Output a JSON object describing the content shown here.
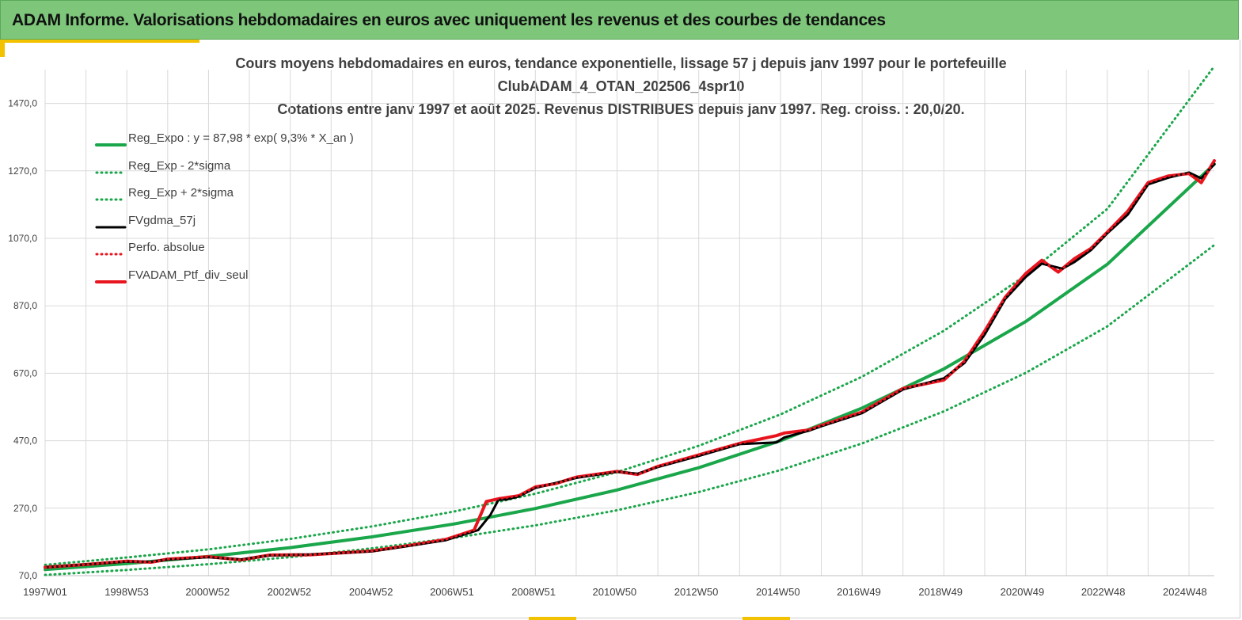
{
  "header": {
    "title": "ADAM Informe. Valorisations hebdomadaires en euros avec uniquement les revenus et des courbes de tendances"
  },
  "colors": {
    "banner": "#7dc67a",
    "accent": "#f2c200",
    "trend_green": "#1aa64a",
    "black": "#000000",
    "red": "#e8141e",
    "grid": "#d9d9d9"
  },
  "chart_data": {
    "type": "line",
    "title_lines": [
      "Cours moyens hebdomadaires  en euros, tendance exponentielle, lissage 57 j depuis janv 1997 pour le portefeuille",
      "ClubADAM_4_OTAN_202506_4spr10",
      "Cotations  entre janv 1997 et août  2025. Revenus DISTRIBUES depuis janv 1997. Reg. croiss. : 20,0/20."
    ],
    "y_ticks": [
      "70,0",
      "270,0",
      "470,0",
      "670,0",
      "870,0",
      "1070,0",
      "1270,0",
      "1470,0"
    ],
    "ylim": [
      70,
      1570
    ],
    "x_ticks": [
      "1997W01",
      "1998W53",
      "2000W52",
      "2002W52",
      "2004W52",
      "2006W51",
      "2008W51",
      "2010W50",
      "2012W50",
      "2014W50",
      "2016W49",
      "2018W49",
      "2020W49",
      "2022W48",
      "2024W48"
    ],
    "xlim": [
      1997.0,
      2025.62
    ],
    "grid": true,
    "legend_position": "top-left",
    "series": [
      {
        "name": "Reg_Expo : y = 87,98 * exp( 9,3% *  X_an )",
        "color": "#1aa64a",
        "style": "solid",
        "x": [
          1997.0,
          1999.0,
          2001.0,
          2003.0,
          2005.0,
          2007.0,
          2009.0,
          2011.0,
          2013.0,
          2015.0,
          2017.0,
          2019.0,
          2021.0,
          2023.0,
          2025.62
        ],
        "y": [
          88,
          106,
          127,
          153,
          185,
          223,
          269,
          324,
          390,
          470,
          567,
          683,
          823,
          993,
          1290
        ]
      },
      {
        "name": "Reg_Exp - 2*sigma",
        "color": "#1aa64a",
        "style": "dotted",
        "x": [
          1997.0,
          1999.0,
          2001.0,
          2003.0,
          2005.0,
          2007.0,
          2009.0,
          2011.0,
          2013.0,
          2015.0,
          2017.0,
          2019.0,
          2021.0,
          2023.0,
          2025.62
        ],
        "y": [
          72,
          87,
          104,
          125,
          151,
          182,
          219,
          264,
          318,
          383,
          462,
          557,
          671,
          809,
          1050
        ]
      },
      {
        "name": "Reg_Exp + 2*sigma",
        "color": "#1aa64a",
        "style": "dotted",
        "x": [
          1997.0,
          1999.0,
          2001.0,
          2003.0,
          2005.0,
          2007.0,
          2009.0,
          2011.0,
          2013.0,
          2015.0,
          2017.0,
          2019.0,
          2021.0,
          2023.0,
          2025.62
        ],
        "y": [
          102,
          124,
          148,
          179,
          216,
          260,
          313,
          377,
          455,
          548,
          660,
          796,
          960,
          1157,
          1580
        ]
      },
      {
        "name": "FVgdma_57j",
        "color": "#000000",
        "style": "solid",
        "x": [
          1997.0,
          1998.0,
          1999.0,
          1999.6,
          2000.0,
          2001.0,
          2001.8,
          2002.5,
          2003.5,
          2005.0,
          2006.0,
          2006.8,
          2007.6,
          2007.9,
          2008.1,
          2008.3,
          2008.6,
          2009.0,
          2009.5,
          2010.0,
          2011.0,
          2011.5,
          2012.0,
          2013.0,
          2014.0,
          2014.9,
          2015.1,
          2015.7,
          2016.0,
          2017.0,
          2018.0,
          2019.0,
          2019.5,
          2020.0,
          2020.5,
          2021.0,
          2021.4,
          2021.9,
          2022.2,
          2022.6,
          2023.0,
          2023.5,
          2024.0,
          2024.5,
          2025.0,
          2025.3,
          2025.62
        ],
        "y": [
          95,
          103,
          112,
          111,
          118,
          125,
          118,
          130,
          133,
          142,
          160,
          175,
          205,
          250,
          295,
          296,
          305,
          330,
          345,
          360,
          378,
          372,
          392,
          425,
          460,
          465,
          480,
          500,
          513,
          552,
          622,
          655,
          700,
          785,
          890,
          955,
          995,
          980,
          1000,
          1035,
          1085,
          1140,
          1230,
          1250,
          1265,
          1248,
          1290
        ]
      },
      {
        "name": "Perfo. absolue",
        "color": "#e8141e",
        "style": "dotted",
        "x": [
          1997.0,
          1998.0,
          1999.0,
          1999.6,
          2000.0,
          2001.0,
          2001.8,
          2002.5,
          2003.5,
          2005.0,
          2006.0,
          2006.8,
          2007.5,
          2007.8,
          2008.1,
          2008.6,
          2009.0,
          2009.5,
          2010.0,
          2011.0,
          2011.5,
          2012.0,
          2013.0,
          2014.0,
          2014.9,
          2015.1,
          2015.7,
          2016.0,
          2017.0,
          2018.0,
          2019.0,
          2019.5,
          2020.0,
          2020.5,
          2021.0,
          2021.4,
          2021.8,
          2022.2,
          2022.6,
          2023.0,
          2023.5,
          2024.0,
          2024.5,
          2025.0,
          2025.3,
          2025.62
        ],
        "y": [
          95,
          103,
          113,
          110,
          119,
          126,
          117,
          131,
          132,
          143,
          161,
          177,
          205,
          290,
          298,
          307,
          333,
          343,
          362,
          379,
          370,
          394,
          428,
          462,
          485,
          493,
          502,
          515,
          555,
          625,
          650,
          705,
          795,
          895,
          965,
          1005,
          970,
          1010,
          1040,
          1088,
          1150,
          1235,
          1255,
          1262,
          1235,
          1300
        ]
      },
      {
        "name": "FVADAM_Ptf_div_seul",
        "color": "#e8141e",
        "style": "solid",
        "x": [
          1997.0,
          1998.0,
          1999.0,
          1999.6,
          2000.0,
          2001.0,
          2001.8,
          2002.5,
          2003.5,
          2005.0,
          2006.0,
          2006.8,
          2007.5,
          2007.8,
          2008.1,
          2008.6,
          2009.0,
          2009.5,
          2010.0,
          2011.0,
          2011.5,
          2012.0,
          2013.0,
          2014.0,
          2014.9,
          2015.1,
          2015.7,
          2016.0,
          2017.0,
          2018.0,
          2019.0,
          2019.5,
          2020.0,
          2020.5,
          2021.0,
          2021.4,
          2021.8,
          2022.2,
          2022.6,
          2023.0,
          2023.5,
          2024.0,
          2024.5,
          2025.0,
          2025.3,
          2025.62
        ],
        "y": [
          95,
          103,
          113,
          110,
          119,
          126,
          117,
          131,
          132,
          143,
          161,
          177,
          205,
          290,
          298,
          307,
          333,
          343,
          362,
          379,
          370,
          394,
          428,
          462,
          485,
          493,
          502,
          515,
          555,
          625,
          650,
          705,
          795,
          895,
          965,
          1005,
          970,
          1010,
          1040,
          1088,
          1150,
          1235,
          1255,
          1262,
          1235,
          1300
        ]
      }
    ]
  }
}
